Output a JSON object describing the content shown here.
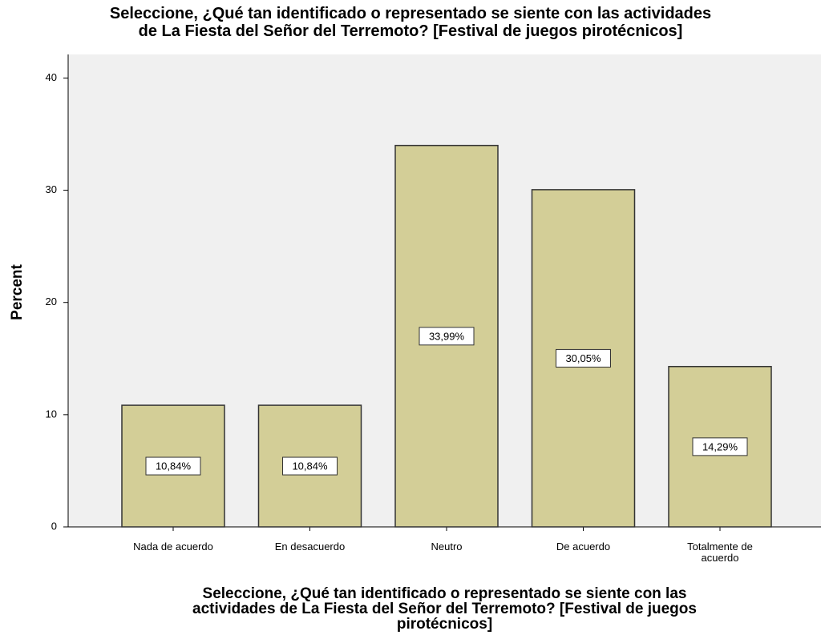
{
  "chart_data": {
    "type": "bar",
    "title": [
      "Seleccione, ¿Qué tan identificado o representado se siente con las actividades",
      "de La Fiesta del Señor del Terremoto? [Festival de juegos pirotécnicos]"
    ],
    "x_label": [
      "Seleccione, ¿Qué tan identificado o representado se siente con las",
      "actividades de La Fiesta del Señor del Terremoto? [Festival de juegos",
      "pirotécnicos]"
    ],
    "y_label": "Percent",
    "categories": [
      "Nada de acuerdo",
      "En desacuerdo",
      "Neutro",
      "De acuerdo",
      "Totalmente de acuerdo"
    ],
    "values": [
      10.84,
      10.84,
      33.99,
      30.05,
      14.29
    ],
    "value_labels": [
      "10,84%",
      "10,84%",
      "33,99%",
      "30,05%",
      "14,29%"
    ],
    "color": "#d3ce97",
    "ylim": [
      0,
      42.1
    ],
    "yticks": [
      0,
      10,
      20,
      30,
      40
    ]
  }
}
